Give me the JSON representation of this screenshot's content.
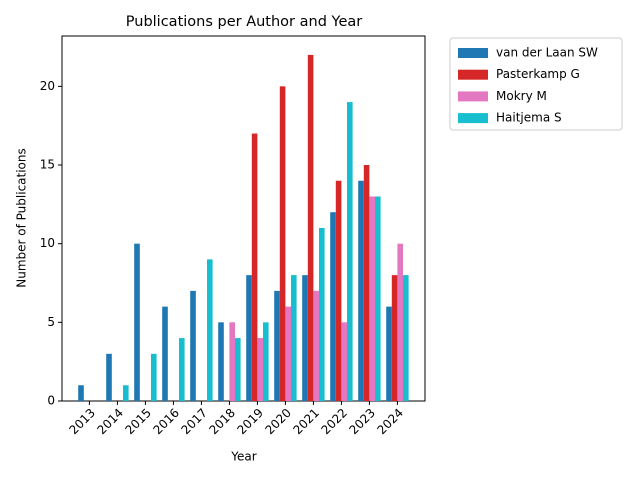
{
  "chart_data": {
    "type": "bar",
    "title": "Publications per Author and Year",
    "x_label": "Year",
    "y_label": "Number of Publications",
    "categories": [
      "2013",
      "2014",
      "2015",
      "2016",
      "2017",
      "2018",
      "2019",
      "2020",
      "2021",
      "2022",
      "2023",
      "2024"
    ],
    "series": [
      {
        "name": "van der Laan SW",
        "color": "#1f77b4",
        "values": [
          1,
          3,
          10,
          6,
          7,
          5,
          8,
          7,
          8,
          12,
          14,
          6
        ]
      },
      {
        "name": "Pasterkamp G",
        "color": "#d62728",
        "values": [
          0,
          0,
          0,
          0,
          0,
          0,
          17,
          20,
          22,
          14,
          15,
          8
        ]
      },
      {
        "name": "Mokry M",
        "color": "#e377c2",
        "values": [
          0,
          0,
          0,
          0,
          0,
          5,
          4,
          6,
          7,
          5,
          13,
          10
        ]
      },
      {
        "name": "Haitjema S",
        "color": "#17becf",
        "values": [
          0,
          1,
          3,
          4,
          9,
          4,
          5,
          8,
          11,
          19,
          13,
          8
        ]
      }
    ],
    "ylim": [
      0,
      23.2
    ],
    "yticks": [
      0,
      5,
      10,
      15,
      20
    ],
    "grid": false,
    "legend": "outside-upper-right"
  }
}
